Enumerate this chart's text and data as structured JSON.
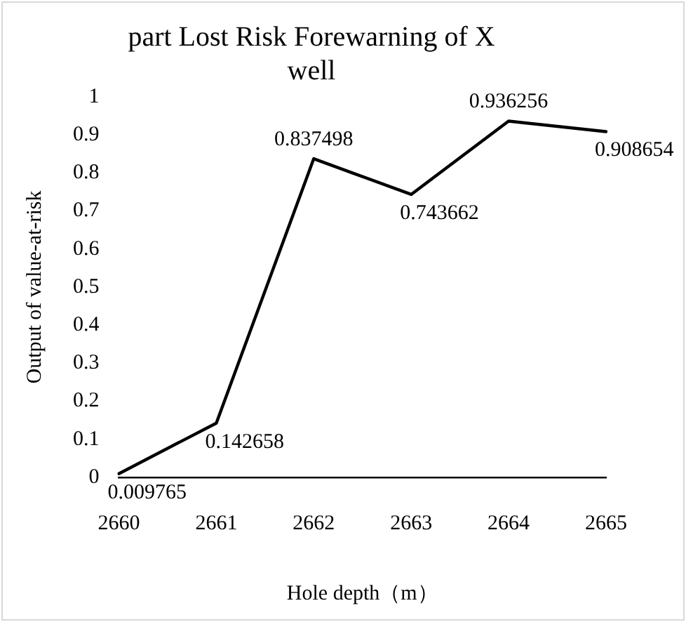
{
  "chart_data": {
    "type": "line",
    "title": "part Lost Risk Forewarning of X well",
    "xlabel": "Hole depth（m）",
    "ylabel": "Output of value-at-risk",
    "categories": [
      "2660",
      "2661",
      "2662",
      "2663",
      "2664",
      "2665"
    ],
    "series": [
      {
        "color": "#000000",
        "values": [
          0.009765,
          0.142658,
          0.837498,
          0.743662,
          0.936256,
          0.908654
        ]
      }
    ],
    "ylim": [
      0,
      1
    ],
    "yticks": [
      0,
      0.1,
      0.2,
      0.3,
      0.4,
      0.5,
      0.6,
      0.7,
      0.8,
      0.9,
      1
    ],
    "grid": false,
    "legend": false,
    "marker": "none",
    "line_style": "solid",
    "data_labels": true
  }
}
